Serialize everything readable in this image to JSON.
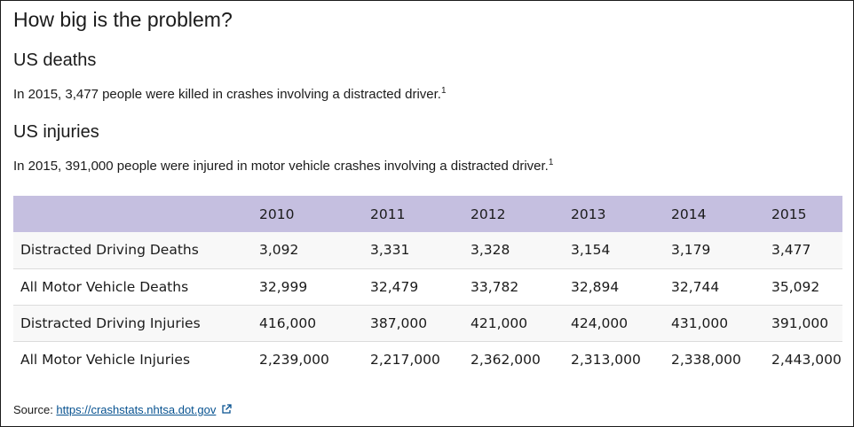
{
  "heading": "How big is the problem?",
  "deaths": {
    "title": "US deaths",
    "text": "In 2015, 3,477 people were killed in crashes involving a distracted driver.",
    "footnote": "1"
  },
  "injuries": {
    "title": "US injuries",
    "text": "In 2015, 391,000 people were injured in motor vehicle crashes involving a distracted driver.",
    "footnote": "1"
  },
  "table": {
    "header": [
      "",
      "2010",
      "2011",
      "2012",
      "2013",
      "2014",
      "2015"
    ],
    "rows": [
      [
        "Distracted Driving Deaths",
        "3,092",
        "3,331",
        "3,328",
        "3,154",
        "3,179",
        "3,477"
      ],
      [
        "All Motor Vehicle Deaths",
        "32,999",
        "32,479",
        "33,782",
        "32,894",
        "32,744",
        "35,092"
      ],
      [
        "Distracted Driving Injuries",
        "416,000",
        "387,000",
        "421,000",
        "424,000",
        "431,000",
        "391,000"
      ],
      [
        "All Motor Vehicle Injuries",
        "2,239,000",
        "2,217,000",
        "2,362,000",
        "2,313,000",
        "2,338,000",
        "2,443,000"
      ]
    ]
  },
  "source": {
    "label": "Source: ",
    "link_text": "https://crashstats.nhtsa.dot.gov",
    "icon": "external-link-icon"
  },
  "colors": {
    "header_bg": "#c5bfe0",
    "link": "#075290",
    "text": "#1b1b1b"
  }
}
